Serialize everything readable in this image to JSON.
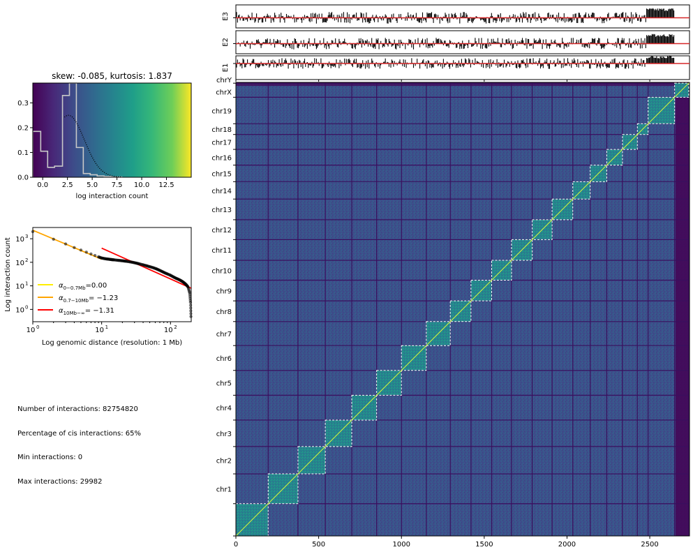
{
  "chart_data": [
    {
      "type": "line",
      "panel": "eigenvector tracks",
      "tracks": [
        {
          "label": "E3",
          "color": "#000000",
          "baseline_color": "#d62728"
        },
        {
          "label": "E2",
          "color": "#000000",
          "baseline_color": "#d62728"
        },
        {
          "label": "E1",
          "color": "#000000",
          "baseline_color": "#d62728"
        }
      ],
      "xlim": [
        0,
        2740
      ]
    },
    {
      "type": "bar",
      "panel": "histogram",
      "title": "skew: -0.085, kurtosis: 1.837",
      "xlabel": "log interaction count",
      "ylabel": "",
      "xlim": [
        -1,
        15
      ],
      "ylim": [
        0,
        0.38
      ],
      "xticks": [
        "0.0",
        "2.5",
        "5.0",
        "7.5",
        "10.0",
        "12.5"
      ],
      "xtick_values": [
        0,
        2.5,
        5,
        7.5,
        10,
        12.5
      ],
      "yticks": [
        "0.0",
        "0.1",
        "0.2",
        "0.3"
      ],
      "ytick_values": [
        0,
        0.1,
        0.2,
        0.3
      ],
      "bin_edges": [
        -1,
        -0.2,
        0.5,
        1.2,
        2.0,
        2.7,
        3.4,
        4.1,
        4.8,
        5.5,
        6.2,
        7.0,
        8.0
      ],
      "values": [
        0.185,
        0.105,
        0.04,
        0.045,
        0.33,
        0.44,
        0.12,
        0.015,
        0.01,
        0.005,
        0.003,
        0.001
      ],
      "background": "viridis gradient",
      "fit_curve": {
        "style": "dotted",
        "mean": 2.6,
        "sd": 1.6
      }
    },
    {
      "type": "scatter",
      "panel": "distance decay",
      "xlabel": "Log genomic distance (resolution: 1 Mb)",
      "ylabel": "Log interaction count",
      "xscale": "log",
      "yscale": "log",
      "xlim": [
        1,
        200
      ],
      "ylim": [
        0.3,
        3000
      ],
      "xticks": [
        "10",
        "10",
        "10"
      ],
      "xtick_exp": [
        "0",
        "1",
        "2"
      ],
      "xtick_values": [
        1,
        10,
        100
      ],
      "yticks": [
        "10",
        "10",
        "10",
        "10"
      ],
      "ytick_exp": [
        "0",
        "1",
        "2",
        "3"
      ],
      "ytick_values": [
        1,
        10,
        100,
        1000
      ],
      "points": [
        [
          1,
          2000
        ],
        [
          2,
          950
        ],
        [
          3,
          600
        ],
        [
          4,
          420
        ],
        [
          5,
          330
        ],
        [
          6,
          270
        ],
        [
          7,
          225
        ],
        [
          8,
          195
        ],
        [
          9,
          170
        ],
        [
          10,
          152
        ],
        [
          11,
          143
        ],
        [
          12,
          138
        ],
        [
          13,
          134
        ],
        [
          14,
          130
        ],
        [
          15,
          127
        ],
        [
          17,
          122
        ],
        [
          19,
          118
        ],
        [
          21,
          114
        ],
        [
          23,
          110
        ],
        [
          26,
          104
        ],
        [
          29,
          98
        ],
        [
          32,
          92
        ],
        [
          35,
          86
        ],
        [
          40,
          78
        ],
        [
          45,
          71
        ],
        [
          50,
          65
        ],
        [
          56,
          59
        ],
        [
          62,
          53
        ],
        [
          68,
          47
        ],
        [
          75,
          41
        ],
        [
          82,
          36
        ],
        [
          90,
          32
        ],
        [
          100,
          28
        ],
        [
          110,
          24
        ],
        [
          120,
          21
        ],
        [
          130,
          19
        ],
        [
          140,
          17
        ],
        [
          150,
          15
        ],
        [
          160,
          13
        ],
        [
          170,
          11
        ],
        [
          180,
          9
        ],
        [
          190,
          5
        ],
        [
          195,
          2
        ],
        [
          198,
          0.5
        ]
      ],
      "series": [
        {
          "name_prefix": "α",
          "name_sub": "0−0.7Mb",
          "name_value": "=0.00",
          "color": "#ffee00",
          "slope": 0.0
        },
        {
          "name_prefix": "α",
          "name_sub": "0.7−10Mb",
          "name_value": "= −1.23",
          "color": "#ffa500",
          "slope": -1.23,
          "x_range": [
            1,
            10
          ],
          "y_at_1": 2300
        },
        {
          "name_prefix": "α",
          "name_sub": "10Mb−∞",
          "name_value": "= −1.31",
          "color": "#ff0000",
          "slope": -1.31,
          "x_range": [
            10,
            200
          ],
          "y_at_10": 400
        }
      ],
      "legend": "lower-left"
    },
    {
      "type": "heatmap",
      "panel": "contact map",
      "xlim": [
        0,
        2740
      ],
      "xticks": [
        "0",
        "500",
        "1000",
        "1500",
        "2000",
        "2500"
      ],
      "xtick_values": [
        0,
        500,
        1000,
        1500,
        2000,
        2500
      ],
      "colormap": "viridis",
      "chromosomes": [
        {
          "name": "",
          "start": 0,
          "end": 195
        },
        {
          "name": "chr1",
          "start": 195,
          "end": 375
        },
        {
          "name": "chr2",
          "start": 375,
          "end": 540
        },
        {
          "name": "chr3",
          "start": 540,
          "end": 700
        },
        {
          "name": "chr4",
          "start": 700,
          "end": 850
        },
        {
          "name": "chr5",
          "start": 850,
          "end": 1000
        },
        {
          "name": "chr6",
          "start": 1000,
          "end": 1150
        },
        {
          "name": "chr7",
          "start": 1150,
          "end": 1295
        },
        {
          "name": "chr8",
          "start": 1295,
          "end": 1420
        },
        {
          "name": "chr9",
          "start": 1420,
          "end": 1545
        },
        {
          "name": "chr10",
          "start": 1545,
          "end": 1665
        },
        {
          "name": "chr11",
          "start": 1665,
          "end": 1790
        },
        {
          "name": "chr12",
          "start": 1790,
          "end": 1910
        },
        {
          "name": "chr13",
          "start": 1910,
          "end": 2035
        },
        {
          "name": "chr14",
          "start": 2035,
          "end": 2140
        },
        {
          "name": "chr15",
          "start": 2140,
          "end": 2240
        },
        {
          "name": "chr16",
          "start": 2240,
          "end": 2335
        },
        {
          "name": "chr17",
          "start": 2335,
          "end": 2425
        },
        {
          "name": "chr18",
          "start": 2425,
          "end": 2490
        },
        {
          "name": "chr19",
          "start": 2490,
          "end": 2650
        },
        {
          "name": "chrX",
          "start": 2650,
          "end": 2735
        },
        {
          "name": "chrY",
          "start": 2735,
          "end": 2740
        }
      ]
    }
  ],
  "stats": {
    "line1": "Number of interactions: 82754820",
    "line2": "Percentage of cis interactions: 65%",
    "line3": "Min interactions: 0",
    "line4": "Max interactions: 29982"
  }
}
